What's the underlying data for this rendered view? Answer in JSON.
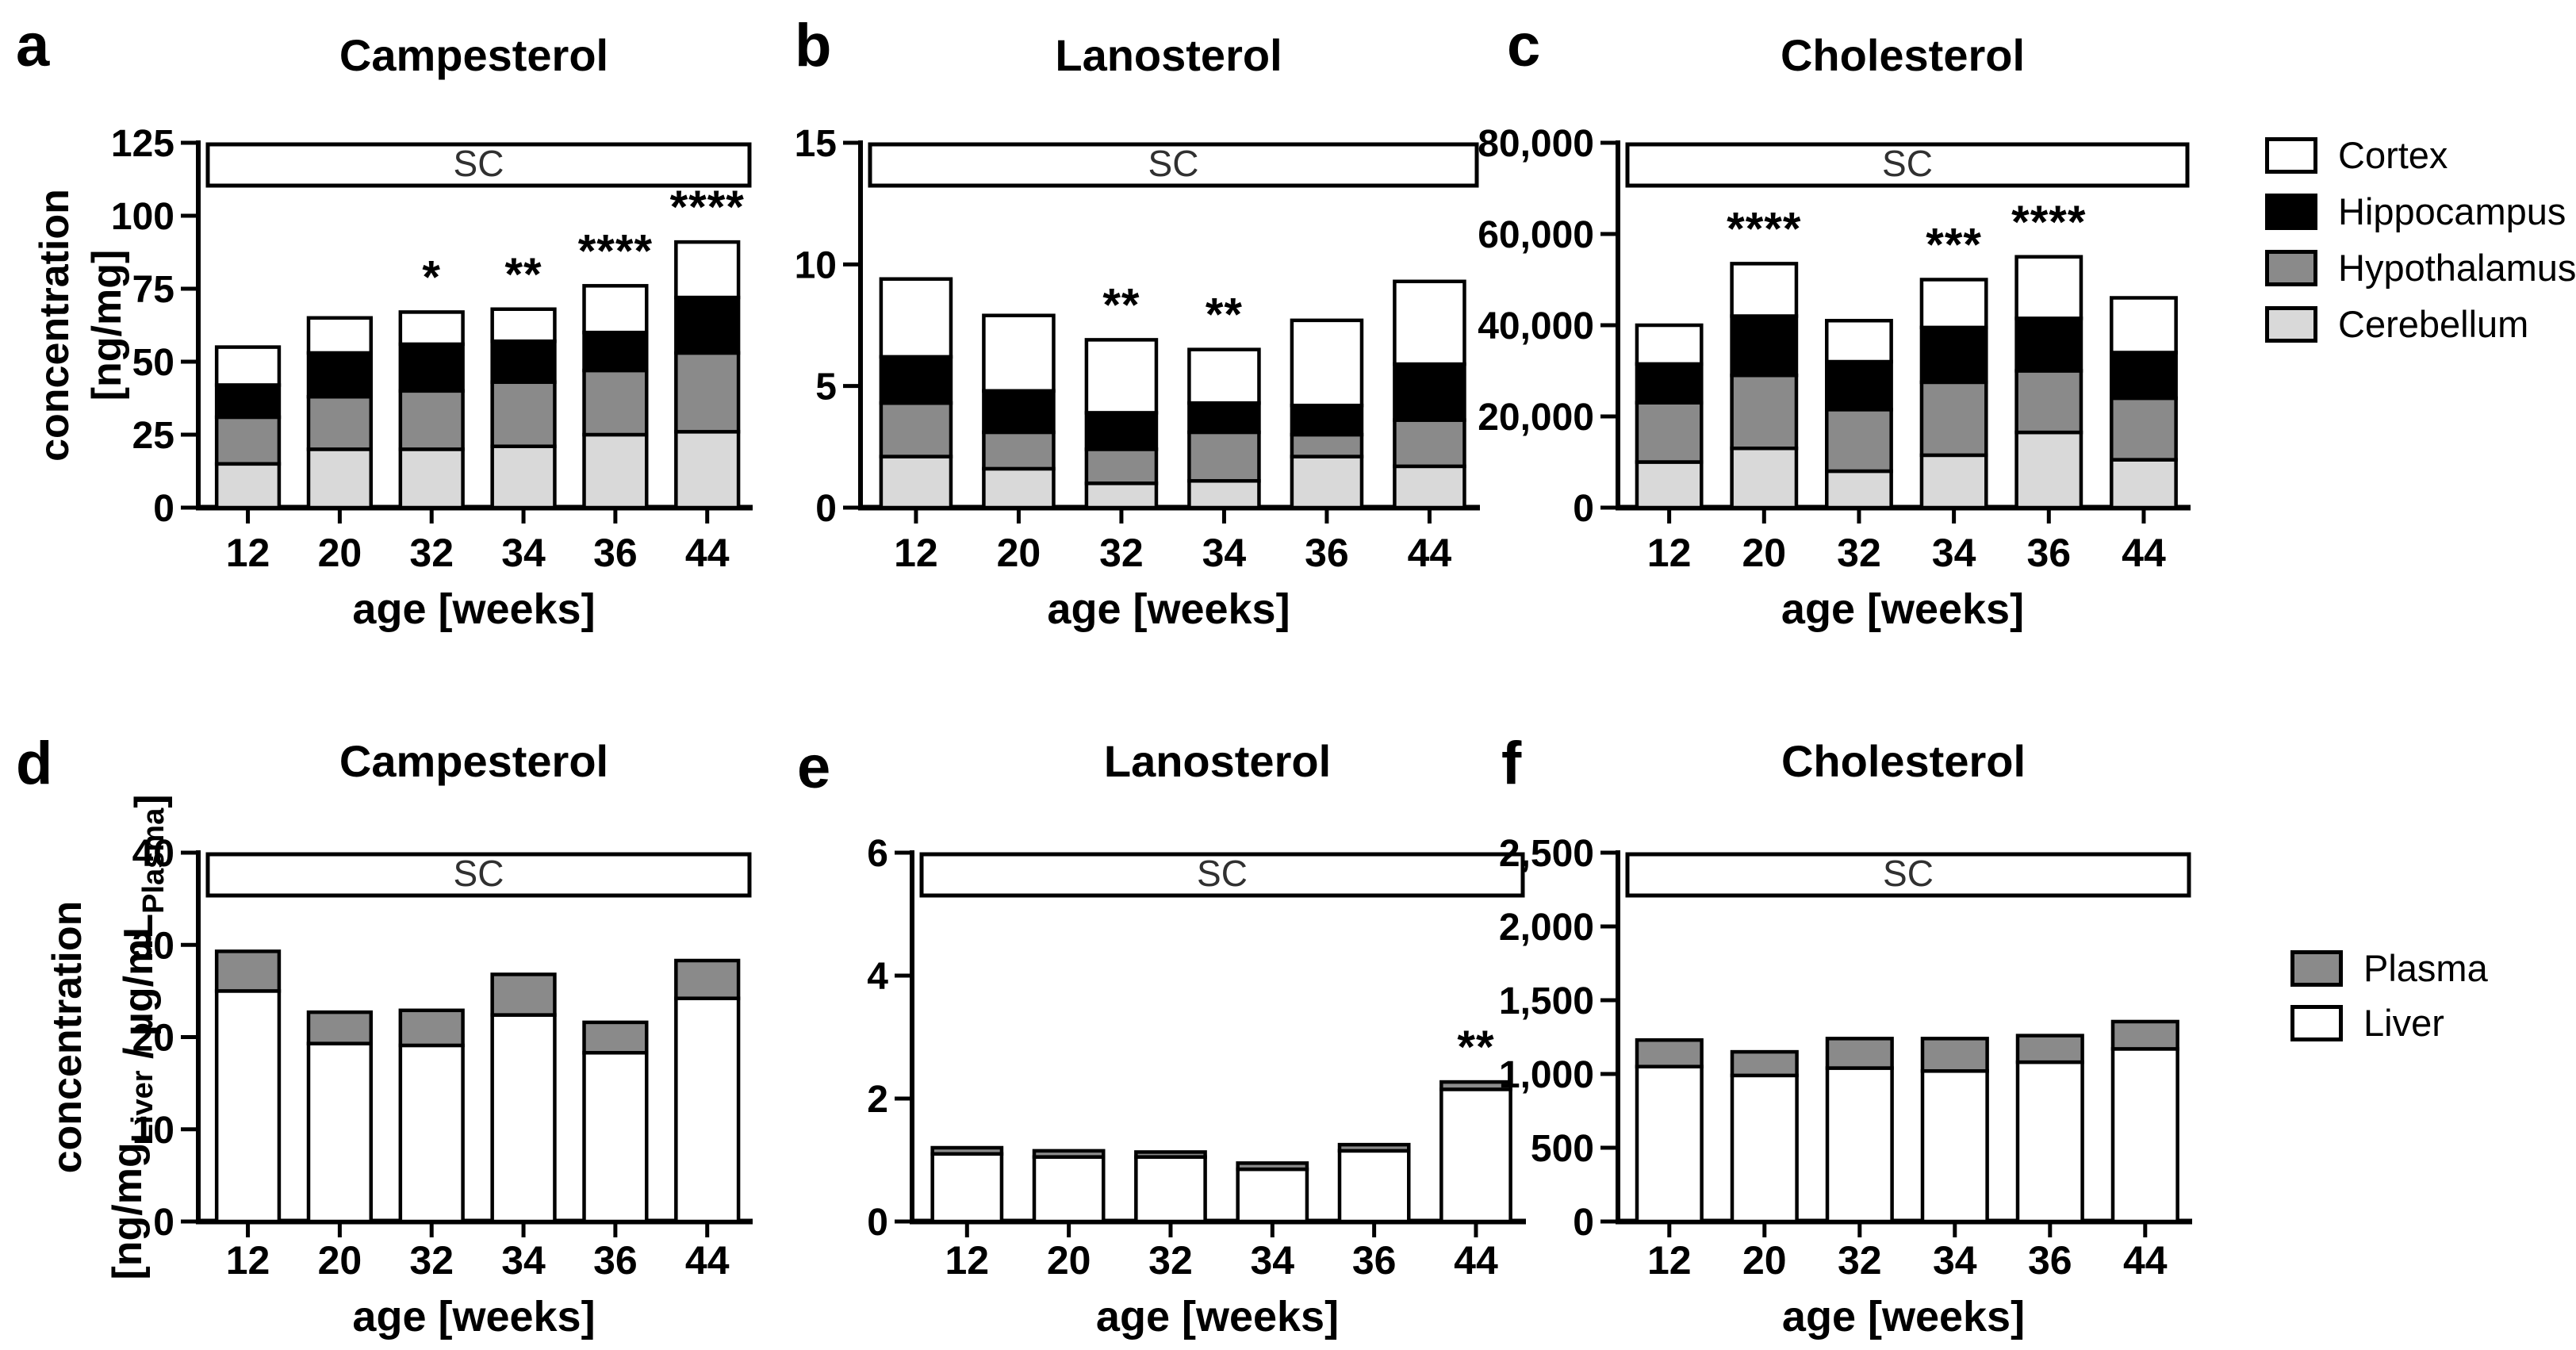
{
  "palette": {
    "cortex": "#ffffff",
    "hippocampus": "#000000",
    "hypothalamus": "#8a8a8a",
    "cerebellum": "#d9d9d9",
    "plasma": "#8a8a8a",
    "liver": "#ffffff",
    "outline": "#000000",
    "sc_text": "#303030"
  },
  "chart_data": [
    {
      "type": "bar",
      "stacked": true,
      "letter": "a",
      "title": "Campesterol",
      "treatment": "SC",
      "grid": false,
      "legend_position": "figure-right",
      "ylabel_lines": [
        [
          {
            "t": "concentration"
          }
        ],
        [
          {
            "t": "[ng/mg]"
          }
        ]
      ],
      "ylim": [
        0,
        125
      ],
      "yticks": [
        0,
        25,
        50,
        75,
        100,
        125
      ],
      "xlabel": "age [weeks]",
      "categories": [
        "12",
        "20",
        "32",
        "34",
        "36",
        "44"
      ],
      "series": [
        {
          "name": "Cerebellum",
          "color": "cerebellum",
          "values": [
            15,
            20,
            20,
            21,
            25,
            26
          ]
        },
        {
          "name": "Hypothalamus",
          "color": "hypothalamus",
          "values": [
            16,
            18,
            20,
            22,
            22,
            27
          ]
        },
        {
          "name": "Hippocampus",
          "color": "hippocampus",
          "values": [
            11,
            15,
            16,
            14,
            13,
            19
          ]
        },
        {
          "name": "Cortex",
          "color": "cortex",
          "values": [
            13,
            12,
            11,
            11,
            16,
            19
          ]
        }
      ],
      "significance": [
        "",
        "",
        "*",
        "**",
        "****",
        "****"
      ]
    },
    {
      "type": "bar",
      "stacked": true,
      "letter": "b",
      "title": "Lanosterol",
      "treatment": "SC",
      "grid": false,
      "legend_position": "figure-right",
      "ylim": [
        0,
        15
      ],
      "yticks": [
        0,
        5,
        10,
        15
      ],
      "xlabel": "age [weeks]",
      "categories": [
        "12",
        "20",
        "32",
        "34",
        "36",
        "44"
      ],
      "series": [
        {
          "name": "Cerebellum",
          "color": "cerebellum",
          "values": [
            2.1,
            1.6,
            1.0,
            1.1,
            2.1,
            1.7
          ]
        },
        {
          "name": "Hypothalamus",
          "color": "hypothalamus",
          "values": [
            2.2,
            1.5,
            1.4,
            2.0,
            0.9,
            1.9
          ]
        },
        {
          "name": "Hippocampus",
          "color": "hippocampus",
          "values": [
            1.9,
            1.7,
            1.5,
            1.2,
            1.2,
            2.3
          ]
        },
        {
          "name": "Cortex",
          "color": "cortex",
          "values": [
            3.2,
            3.1,
            3.0,
            2.2,
            3.5,
            3.4
          ]
        }
      ],
      "significance": [
        "",
        "",
        "**",
        "**",
        "",
        ""
      ]
    },
    {
      "type": "bar",
      "stacked": true,
      "letter": "c",
      "title": "Cholesterol",
      "treatment": "SC",
      "grid": false,
      "legend_position": "figure-right",
      "ylim": [
        0,
        80000
      ],
      "yticks": [
        0,
        20000,
        40000,
        60000,
        80000
      ],
      "xlabel": "age [weeks]",
      "categories": [
        "12",
        "20",
        "32",
        "34",
        "36",
        "44"
      ],
      "series": [
        {
          "name": "Cerebellum",
          "color": "cerebellum",
          "values": [
            10000,
            13000,
            8000,
            11500,
            16500,
            10500
          ]
        },
        {
          "name": "Hypothalamus",
          "color": "hypothalamus",
          "values": [
            13000,
            16000,
            13500,
            16000,
            13500,
            13500
          ]
        },
        {
          "name": "Hippocampus",
          "color": "hippocampus",
          "values": [
            8500,
            13000,
            10500,
            12000,
            11500,
            10000
          ]
        },
        {
          "name": "Cortex",
          "color": "cortex",
          "values": [
            8500,
            11500,
            9000,
            10500,
            13500,
            12000
          ]
        }
      ],
      "significance": [
        "",
        "****",
        "",
        "***",
        "****",
        ""
      ]
    },
    {
      "type": "bar",
      "stacked": true,
      "letter": "d",
      "title": "Campesterol",
      "treatment": "SC",
      "grid": false,
      "legend_position": "figure-right",
      "ylabel_lines": [
        [
          {
            "t": "concentration"
          }
        ],
        [
          {
            "t": "[ng/mg"
          },
          {
            "t": "Liver",
            "sub": true
          },
          {
            "t": " / µg/mL"
          },
          {
            "t": "Plasma",
            "sub": true
          },
          {
            "t": "]"
          }
        ]
      ],
      "ylim": [
        0,
        40
      ],
      "yticks": [
        0,
        10,
        20,
        30,
        40
      ],
      "xlabel": "age [weeks]",
      "categories": [
        "12",
        "20",
        "32",
        "34",
        "36",
        "44"
      ],
      "series": [
        {
          "name": "Liver",
          "color": "liver",
          "values": [
            25.0,
            19.3,
            19.1,
            22.4,
            18.3,
            24.2
          ]
        },
        {
          "name": "Plasma",
          "color": "plasma",
          "values": [
            4.3,
            3.4,
            3.8,
            4.4,
            3.3,
            4.1
          ]
        }
      ],
      "significance": [
        "",
        "",
        "",
        "",
        "",
        ""
      ]
    },
    {
      "type": "bar",
      "stacked": true,
      "letter": "e",
      "title": "Lanosterol",
      "treatment": "SC",
      "grid": false,
      "legend_position": "figure-right",
      "ylim": [
        0,
        6
      ],
      "yticks": [
        0,
        2,
        4,
        6
      ],
      "xlabel": "age [weeks]",
      "categories": [
        "12",
        "20",
        "32",
        "34",
        "36",
        "44"
      ],
      "series": [
        {
          "name": "Liver",
          "color": "liver",
          "values": [
            1.1,
            1.05,
            1.05,
            0.85,
            1.15,
            2.15
          ]
        },
        {
          "name": "Plasma",
          "color": "plasma",
          "values": [
            0.1,
            0.1,
            0.08,
            0.1,
            0.1,
            0.12
          ]
        }
      ],
      "significance": [
        "",
        "",
        "",
        "",
        "",
        "**"
      ]
    },
    {
      "type": "bar",
      "stacked": true,
      "letter": "f",
      "title": "Cholesterol",
      "treatment": "SC",
      "grid": false,
      "legend_position": "figure-right",
      "ylim": [
        0,
        2500
      ],
      "yticks": [
        0,
        500,
        1000,
        1500,
        2000,
        2500
      ],
      "xlabel": "age [weeks]",
      "categories": [
        "12",
        "20",
        "32",
        "34",
        "36",
        "44"
      ],
      "series": [
        {
          "name": "Liver",
          "color": "liver",
          "values": [
            1050,
            990,
            1040,
            1020,
            1080,
            1170
          ]
        },
        {
          "name": "Plasma",
          "color": "plasma",
          "values": [
            180,
            160,
            200,
            220,
            180,
            185
          ]
        }
      ],
      "significance": [
        "",
        "",
        "",
        "",
        "",
        ""
      ]
    }
  ],
  "legends": {
    "brain": {
      "items": [
        {
          "label": "Cortex",
          "color": "cortex"
        },
        {
          "label": "Hippocampus",
          "color": "hippocampus"
        },
        {
          "label": "Hypothalamus",
          "color": "hypothalamus"
        },
        {
          "label": "Cerebellum",
          "color": "cerebellum"
        }
      ]
    },
    "liver_plasma": {
      "items": [
        {
          "label": "Plasma",
          "color": "plasma"
        },
        {
          "label": "Liver",
          "color": "liver"
        }
      ]
    }
  }
}
